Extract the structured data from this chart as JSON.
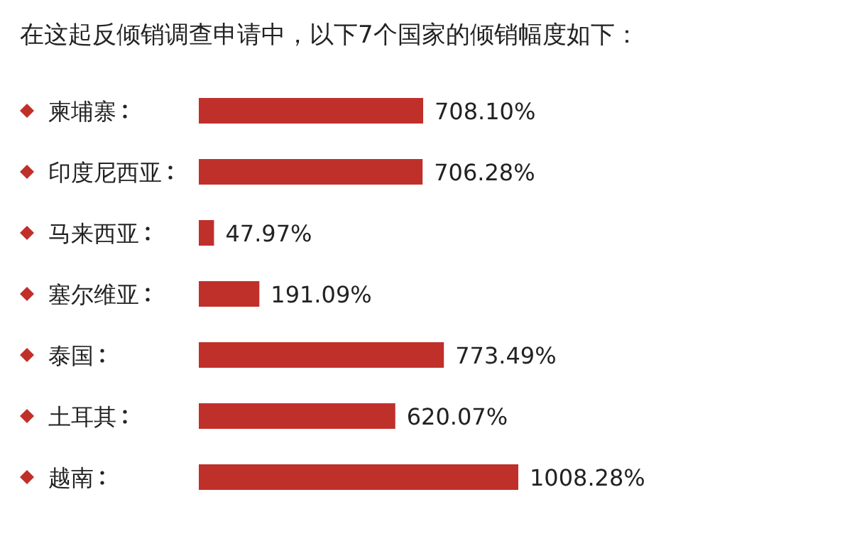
{
  "chart_data": {
    "type": "bar",
    "orientation": "horizontal",
    "title": "在这起反倾销调查申请中，以下7个国家的倾销幅度如下：",
    "categories": [
      "柬埔寨",
      "印度尼西亚",
      "马来西亚",
      "塞尔维亚",
      "泰国",
      "土耳其",
      "越南"
    ],
    "values": [
      708.1,
      706.28,
      47.97,
      191.09,
      773.49,
      620.07,
      1008.28
    ],
    "value_labels": [
      "708.10%",
      "706.28%",
      "47.97%",
      "191.09%",
      "773.49%",
      "620.07%",
      "1008.28%"
    ],
    "color": "#c0302b"
  }
}
